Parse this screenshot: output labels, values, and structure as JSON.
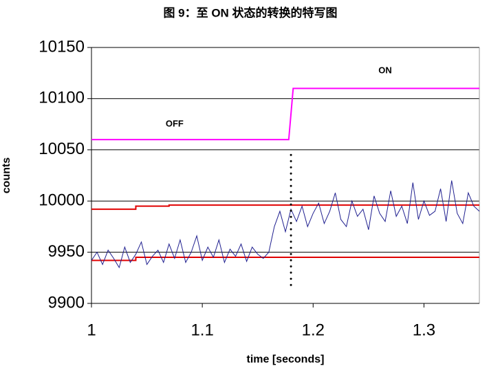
{
  "chart_data": {
    "type": "line",
    "title": "图 9：至 ON 状态的转换的特写图",
    "x_label": "time [seconds]",
    "y_label": "counts",
    "xlim": [
      1,
      1.35
    ],
    "xticks": [
      1,
      1.1,
      1.2,
      1.3
    ],
    "ylim": [
      9900,
      10150
    ],
    "yticks": [
      9900,
      9950,
      10000,
      10050,
      10100,
      10150
    ],
    "grid": true,
    "annotations": [
      {
        "text": "OFF",
        "x": 1.075,
        "y": 10075
      },
      {
        "text": "ON",
        "x": 1.265,
        "y": 10127
      }
    ],
    "markers": [
      {
        "x": 1.18,
        "y_from": 9918,
        "y_to": 10048
      }
    ],
    "series": [
      {
        "color": "#ff00ff",
        "x": [
          1,
          1.178,
          1.182,
          1.35
        ],
        "values": [
          10060,
          10060,
          10110,
          10110
        ]
      },
      {
        "color": "#e00000",
        "x": [
          1,
          1.04,
          1.04,
          1.07,
          1.07,
          1.35
        ],
        "values": [
          9992,
          9992,
          9995,
          9995,
          9996,
          9996
        ]
      },
      {
        "color": "#e00000",
        "x": [
          1,
          1.04,
          1.04,
          1.35
        ],
        "values": [
          9942,
          9942,
          9945,
          9945
        ]
      },
      {
        "color": "#1f1f8f",
        "x": [
          1.0,
          1.005,
          1.01,
          1.015,
          1.02,
          1.025,
          1.03,
          1.035,
          1.04,
          1.045,
          1.05,
          1.055,
          1.06,
          1.065,
          1.07,
          1.075,
          1.08,
          1.085,
          1.09,
          1.095,
          1.1,
          1.105,
          1.11,
          1.115,
          1.12,
          1.125,
          1.13,
          1.135,
          1.14,
          1.145,
          1.15,
          1.155,
          1.16,
          1.165,
          1.17,
          1.175,
          1.18,
          1.185,
          1.19,
          1.195,
          1.2,
          1.205,
          1.21,
          1.215,
          1.22,
          1.225,
          1.23,
          1.235,
          1.24,
          1.245,
          1.25,
          1.255,
          1.26,
          1.265,
          1.27,
          1.275,
          1.28,
          1.285,
          1.29,
          1.295,
          1.3,
          1.305,
          1.31,
          1.315,
          1.32,
          1.325,
          1.33,
          1.335,
          1.34,
          1.345,
          1.35
        ],
        "values": [
          9942,
          9950,
          9938,
          9952,
          9944,
          9935,
          9955,
          9940,
          9948,
          9960,
          9938,
          9946,
          9952,
          9940,
          9958,
          9944,
          9962,
          9940,
          9950,
          9966,
          9942,
          9955,
          9945,
          9962,
          9940,
          9953,
          9946,
          9958,
          9941,
          9955,
          9948,
          9944,
          9950,
          9975,
          9990,
          9970,
          9992,
          9980,
          9995,
          9975,
          9988,
          9998,
          9978,
          9990,
          10008,
          9982,
          9975,
          10000,
          9985,
          9992,
          9972,
          10005,
          9988,
          9980,
          10010,
          9985,
          9995,
          9978,
          10018,
          9982,
          10000,
          9986,
          9990,
          10012,
          9980,
          10020,
          9988,
          9978,
          10008,
          9995,
          9990
        ]
      }
    ]
  }
}
